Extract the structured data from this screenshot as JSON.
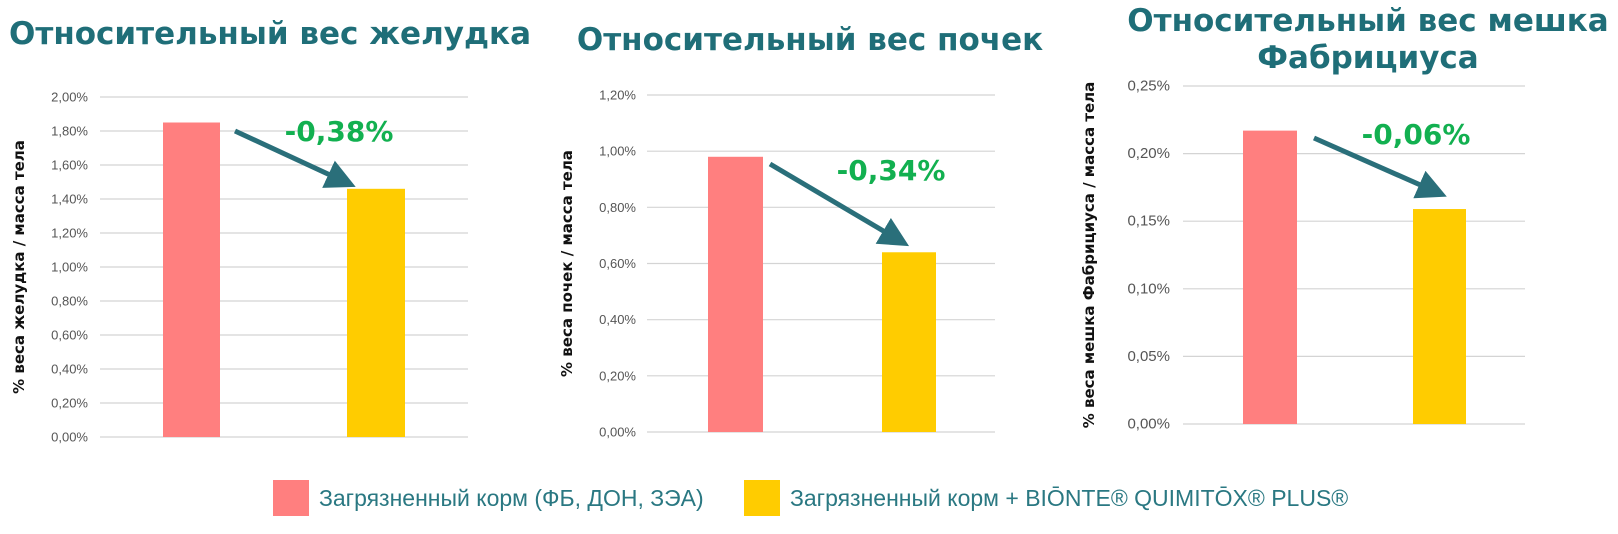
{
  "colors": {
    "series1": "#ff7f7f",
    "series2": "#ffcc00",
    "title": "#1f6e78",
    "arrow": "#2a6f7a",
    "delta": "#12b050",
    "grid": "#d4d4d4",
    "tick_text": "#555555"
  },
  "legend": {
    "items": [
      {
        "label": "Загрязненный корм (ФБ, ДОН, ЗЭА)"
      },
      {
        "label": "Загрязненный корм + BIŌNTE® QUIMITŌX® PLUS®"
      }
    ]
  },
  "chart_data": [
    {
      "type": "bar",
      "title": "Относительный вес желудка",
      "ylabel": "% веса желудка / масса тела",
      "series": [
        {
          "name": "Загрязненный корм (ФБ, ДОН, ЗЭА)",
          "values": [
            1.85
          ]
        },
        {
          "name": "Загрязненный корм + BIŌNTE® QUIMITŌX® PLUS®",
          "values": [
            1.46
          ]
        }
      ],
      "ylim": [
        0,
        2.0
      ],
      "yticks": [
        0,
        0.2,
        0.4,
        0.6,
        0.8,
        1.0,
        1.2,
        1.4,
        1.6,
        1.8,
        2.0
      ],
      "ytick_labels": [
        "0,00%",
        "0,20%",
        "0,40%",
        "0,60%",
        "0,80%",
        "1,00%",
        "1,20%",
        "1,40%",
        "1,60%",
        "1,80%",
        "2,00%"
      ],
      "annotation": "-0,38%",
      "grid": true
    },
    {
      "type": "bar",
      "title": "Относительный вес почек",
      "ylabel": "% веса почек / масса тела",
      "series": [
        {
          "name": "Загрязненный корм (ФБ, ДОН, ЗЭА)",
          "values": [
            0.98
          ]
        },
        {
          "name": "Загрязненный корм + BIŌNTE® QUIMITŌX® PLUS®",
          "values": [
            0.64
          ]
        }
      ],
      "ylim": [
        0,
        1.2
      ],
      "yticks": [
        0,
        0.2,
        0.4,
        0.6,
        0.8,
        1.0,
        1.2
      ],
      "ytick_labels": [
        "0,00%",
        "0,20%",
        "0,40%",
        "0,60%",
        "0,80%",
        "1,00%",
        "1,20%"
      ],
      "annotation": "-0,34%",
      "grid": true
    },
    {
      "type": "bar",
      "title": "Относительный вес мешка Фабрициуса",
      "ylabel": "% веса мешка Фабрициуса / масса тела",
      "series": [
        {
          "name": "Загрязненный корм (ФБ, ДОН, ЗЭА)",
          "values": [
            0.217
          ]
        },
        {
          "name": "Загрязненный корм + BIŌNTE® QUIMITŌX® PLUS®",
          "values": [
            0.159
          ]
        }
      ],
      "ylim": [
        0,
        0.25
      ],
      "yticks": [
        0,
        0.05,
        0.1,
        0.15,
        0.2,
        0.25
      ],
      "ytick_labels": [
        "0,00%",
        "0,05%",
        "0,10%",
        "0,15%",
        "0,20%",
        "0,25%"
      ],
      "annotation": "-0,06%",
      "grid": true
    }
  ]
}
